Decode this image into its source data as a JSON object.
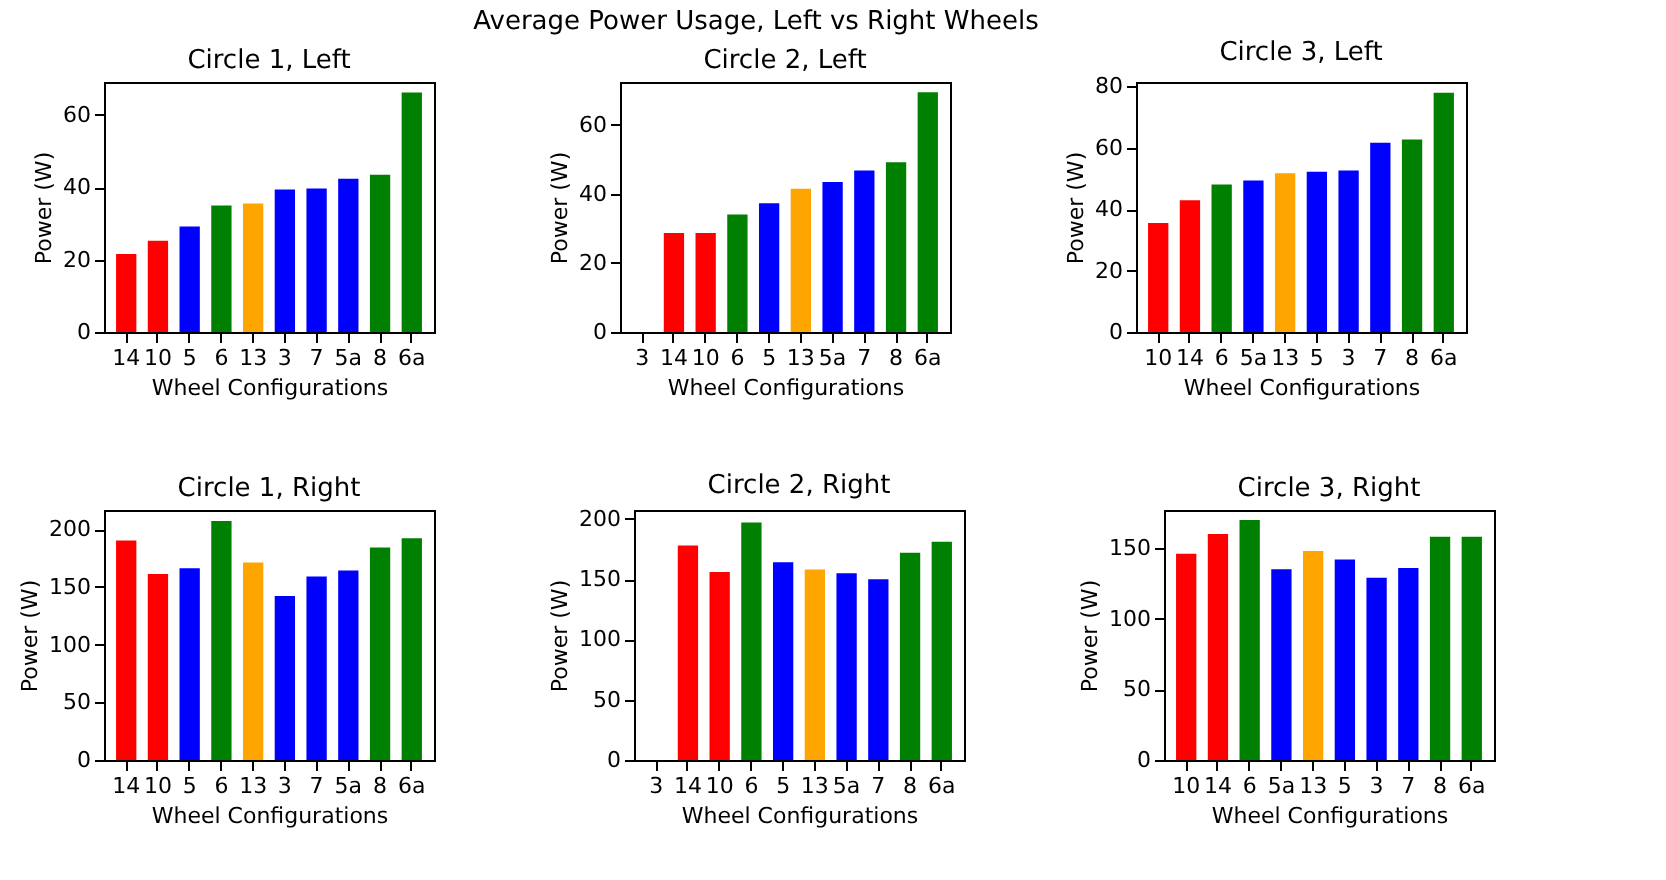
{
  "chart_data": [
    {
      "type": "bar",
      "title": "Circle 1, Left",
      "annotations": [
        "Average Power Usage, Left vs Right Wheels"
      ],
      "xlabel": "Wheel Configurations",
      "ylabel": "Power (W)",
      "categories": [
        "14",
        "10",
        "5",
        "6",
        "13",
        "3",
        "7",
        "5a",
        "8",
        "6a"
      ],
      "values": [
        21.5,
        25.2,
        29.1,
        34.9,
        35.5,
        39.3,
        39.6,
        42.3,
        43.4,
        66.1
      ],
      "colors": [
        "#ff0000",
        "#ff0000",
        "#0000ff",
        "#008000",
        "#ffa500",
        "#0000ff",
        "#0000ff",
        "#0000ff",
        "#008000",
        "#008000"
      ],
      "ylim": [
        0,
        69
      ],
      "yticks": [
        0,
        20,
        40,
        60
      ]
    },
    {
      "type": "bar",
      "title": "Circle 2, Left",
      "xlabel": "Wheel Configurations",
      "ylabel": "Power (W)",
      "categories": [
        "3",
        "14",
        "10",
        "6",
        "5",
        "13",
        "5a",
        "7",
        "8",
        "6a"
      ],
      "values": [
        null,
        28.6,
        28.6,
        34.0,
        37.2,
        41.4,
        43.4,
        46.7,
        49.1,
        69.3
      ],
      "colors": [
        "#0000ff",
        "#ff0000",
        "#ff0000",
        "#008000",
        "#0000ff",
        "#ffa500",
        "#0000ff",
        "#0000ff",
        "#008000",
        "#008000"
      ],
      "ylim": [
        0,
        72.3
      ],
      "yticks": [
        0,
        20,
        40,
        60
      ]
    },
    {
      "type": "bar",
      "title": "Circle 3, Left",
      "xlabel": "Wheel Configurations",
      "ylabel": "Power (W)",
      "categories": [
        "10",
        "14",
        "6",
        "5a",
        "13",
        "5",
        "3",
        "7",
        "8",
        "6a"
      ],
      "values": [
        35.5,
        42.9,
        48.0,
        49.3,
        51.7,
        52.2,
        52.6,
        61.6,
        62.7,
        77.9
      ],
      "colors": [
        "#ff0000",
        "#ff0000",
        "#008000",
        "#0000ff",
        "#ffa500",
        "#0000ff",
        "#0000ff",
        "#0000ff",
        "#008000",
        "#008000"
      ],
      "ylim": [
        0,
        81.4
      ],
      "yticks": [
        0,
        20,
        40,
        60,
        80
      ]
    },
    {
      "type": "bar",
      "title": "Circle 1, Right",
      "xlabel": "Wheel Configurations",
      "ylabel": "Power (W)",
      "categories": [
        "14",
        "10",
        "5",
        "6",
        "13",
        "3",
        "7",
        "5a",
        "8",
        "6a"
      ],
      "values": [
        190,
        161,
        166,
        207,
        171,
        142,
        159,
        164,
        184,
        192
      ],
      "colors": [
        "#ff0000",
        "#ff0000",
        "#0000ff",
        "#008000",
        "#ffa500",
        "#0000ff",
        "#0000ff",
        "#0000ff",
        "#008000",
        "#008000"
      ],
      "ylim": [
        0,
        216.5
      ],
      "yticks": [
        0,
        50,
        100,
        150,
        200
      ]
    },
    {
      "type": "bar",
      "title": "Circle 2, Right",
      "xlabel": "Wheel Configurations",
      "ylabel": "Power (W)",
      "categories": [
        "3",
        "14",
        "10",
        "6",
        "5",
        "13",
        "5a",
        "7",
        "8",
        "6a"
      ],
      "values": [
        null,
        178,
        156,
        197,
        164,
        158,
        155,
        150,
        172,
        181
      ],
      "colors": [
        "#0000ff",
        "#ff0000",
        "#ff0000",
        "#008000",
        "#0000ff",
        "#ffa500",
        "#0000ff",
        "#0000ff",
        "#008000",
        "#008000"
      ],
      "ylim": [
        0,
        207.4
      ],
      "yticks": [
        0,
        50,
        100,
        150,
        200
      ]
    },
    {
      "type": "bar",
      "title": "Circle 3, Right",
      "xlabel": "Wheel Configurations",
      "ylabel": "Power (W)",
      "categories": [
        "10",
        "14",
        "6",
        "5a",
        "13",
        "5",
        "3",
        "7",
        "8",
        "6a"
      ],
      "values": [
        146,
        160,
        170,
        135,
        148,
        142,
        129,
        136,
        158,
        158
      ],
      "colors": [
        "#ff0000",
        "#ff0000",
        "#008000",
        "#0000ff",
        "#ffa500",
        "#0000ff",
        "#0000ff",
        "#0000ff",
        "#008000",
        "#008000"
      ],
      "ylim": [
        0,
        177
      ],
      "yticks": [
        0,
        50,
        100,
        150
      ]
    }
  ]
}
